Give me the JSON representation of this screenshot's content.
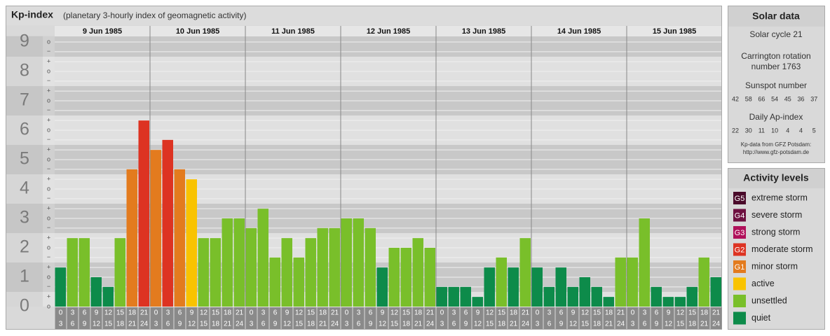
{
  "chart_data": {
    "type": "bar",
    "title": "Kp-index",
    "subtitle": "(planetary 3-hourly index of geomagnetic activity)",
    "days": [
      "9 Jun 1985",
      "10 Jun 1985",
      "11 Jun 1985",
      "12 Jun 1985",
      "13 Jun 1985",
      "14 Jun 1985",
      "15 Jun 1985"
    ],
    "hours": [
      [
        0,
        3
      ],
      [
        3,
        6
      ],
      [
        6,
        9
      ],
      [
        9,
        12
      ],
      [
        12,
        15
      ],
      [
        15,
        18
      ],
      [
        18,
        21
      ],
      [
        21,
        24
      ]
    ],
    "values": [
      1.33,
      2.33,
      2.33,
      1,
      0.67,
      2.33,
      4.67,
      6.33,
      5.33,
      5.67,
      4.67,
      4.33,
      2.33,
      2.33,
      3,
      3,
      2.67,
      3.33,
      1.67,
      2.33,
      1.67,
      2.33,
      2.67,
      2.67,
      3,
      3,
      2.67,
      1.33,
      2,
      2,
      2.33,
      2,
      0.67,
      0.67,
      0.67,
      0.33,
      1.33,
      1.67,
      1.33,
      2.33,
      1.33,
      0.67,
      1.33,
      0.67,
      1,
      0.67,
      0.33,
      1.67,
      1.67,
      3,
      0.67,
      0.33,
      0.33,
      0.67,
      1.67,
      1
    ],
    "colors": [
      "#0d8b4a",
      "#79bf2a",
      "#79bf2a",
      "#0d8b4a",
      "#0d8b4a",
      "#79bf2a",
      "#e37b1e",
      "#dd3322",
      "#e37b1e",
      "#dd3322",
      "#e37b1e",
      "#f9c300",
      "#79bf2a",
      "#79bf2a",
      "#79bf2a",
      "#79bf2a",
      "#79bf2a",
      "#79bf2a",
      "#79bf2a",
      "#79bf2a",
      "#79bf2a",
      "#79bf2a",
      "#79bf2a",
      "#79bf2a",
      "#79bf2a",
      "#79bf2a",
      "#79bf2a",
      "#0d8b4a",
      "#79bf2a",
      "#79bf2a",
      "#79bf2a",
      "#79bf2a",
      "#0d8b4a",
      "#0d8b4a",
      "#0d8b4a",
      "#0d8b4a",
      "#0d8b4a",
      "#79bf2a",
      "#0d8b4a",
      "#79bf2a",
      "#0d8b4a",
      "#0d8b4a",
      "#0d8b4a",
      "#0d8b4a",
      "#0d8b4a",
      "#0d8b4a",
      "#0d8b4a",
      "#79bf2a",
      "#79bf2a",
      "#79bf2a",
      "#0d8b4a",
      "#0d8b4a",
      "#0d8b4a",
      "#0d8b4a",
      "#79bf2a",
      "#0d8b4a"
    ],
    "ylim": [
      0,
      9.2
    ],
    "yticks": [
      0,
      1,
      2,
      3,
      4,
      5,
      6,
      7,
      8,
      9
    ],
    "yminorticks": [
      {
        "value": 0,
        "label": "o"
      },
      {
        "value": 0.33,
        "label": "+"
      },
      {
        "value": 0.67,
        "label": "−"
      },
      {
        "value": 1,
        "label": "o"
      },
      {
        "value": 1.33,
        "label": "+"
      },
      {
        "value": 1.67,
        "label": "−"
      },
      {
        "value": 2,
        "label": "o"
      },
      {
        "value": 2.33,
        "label": "+"
      },
      {
        "value": 2.67,
        "label": "−"
      },
      {
        "value": 3,
        "label": "o"
      },
      {
        "value": 3.33,
        "label": "+"
      },
      {
        "value": 3.67,
        "label": "−"
      },
      {
        "value": 4,
        "label": "o"
      },
      {
        "value": 4.33,
        "label": "+"
      },
      {
        "value": 4.67,
        "label": "−"
      },
      {
        "value": 5,
        "label": "o"
      },
      {
        "value": 5.33,
        "label": "+"
      },
      {
        "value": 5.67,
        "label": "−"
      },
      {
        "value": 6,
        "label": "o"
      },
      {
        "value": 6.33,
        "label": "+"
      },
      {
        "value": 6.67,
        "label": "−"
      },
      {
        "value": 7,
        "label": "o"
      },
      {
        "value": 7.33,
        "label": "+"
      },
      {
        "value": 7.67,
        "label": "−"
      },
      {
        "value": 8,
        "label": "o"
      },
      {
        "value": 8.33,
        "label": "+"
      },
      {
        "value": 8.67,
        "label": "−"
      },
      {
        "value": 9,
        "label": "o"
      }
    ],
    "grid": true,
    "solar": {
      "title": "Solar data",
      "cycle": "Solar cycle 21",
      "carrington": [
        "Carrington rotation",
        "number 1763"
      ],
      "sunspot_title": "Sunspot number",
      "sunspot": [
        42,
        58,
        66,
        54,
        45,
        36,
        37
      ],
      "ap_title": "Daily Ap-index",
      "ap": [
        22,
        30,
        11,
        10,
        4,
        4,
        5
      ],
      "source": [
        "Kp-data from GFZ Potsdam:",
        "http://www.gfz-potsdam.de"
      ]
    },
    "legend": {
      "title": "Activity levels",
      "items": [
        {
          "code": "G5",
          "label": "extreme storm",
          "color": "#4a0a2a"
        },
        {
          "code": "G4",
          "label": "severe storm",
          "color": "#6e1040"
        },
        {
          "code": "G3",
          "label": "strong storm",
          "color": "#b0105a"
        },
        {
          "code": "G2",
          "label": "moderate storm",
          "color": "#dd3322"
        },
        {
          "code": "G1",
          "label": "minor storm",
          "color": "#e37b1e"
        },
        {
          "label": "active",
          "color": "#f9c300"
        },
        {
          "label": "unsettled",
          "color": "#79bf2a"
        },
        {
          "label": "quiet",
          "color": "#0d8b4a"
        }
      ]
    }
  }
}
